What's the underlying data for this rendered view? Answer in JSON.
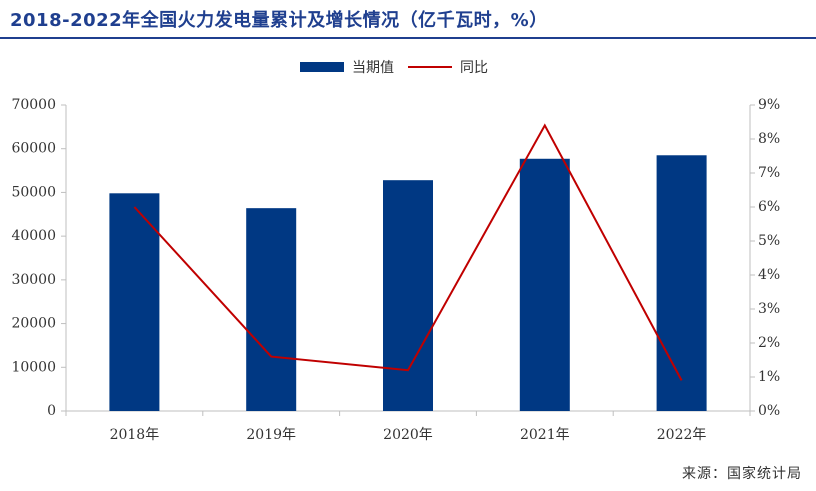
{
  "header": {
    "title": "2018-2022年全国火力发电量累计及增长情况（亿千瓦时，%）"
  },
  "legend": {
    "bar_label": "当期值",
    "line_label": "同比"
  },
  "source": "来源：国家统计局",
  "colors": {
    "bar": "#003883",
    "line": "#c00000",
    "title": "#1f3f8f",
    "axis": "#bfbfbf"
  },
  "chart_data": {
    "type": "bar",
    "categories": [
      "2018年",
      "2019年",
      "2020年",
      "2021年",
      "2022年"
    ],
    "series": [
      {
        "name": "当期值",
        "type": "bar",
        "axis": "left",
        "values": [
          49800,
          46400,
          52800,
          57700,
          58500
        ]
      },
      {
        "name": "同比",
        "type": "line",
        "axis": "right",
        "values": [
          6.0,
          1.6,
          1.2,
          8.4,
          0.9
        ]
      }
    ],
    "y_left": {
      "range": [
        0,
        70000
      ],
      "ticks": [
        "0",
        "10000",
        "20000",
        "30000",
        "40000",
        "50000",
        "60000",
        "70000"
      ]
    },
    "y_right": {
      "range": [
        0,
        9
      ],
      "ticks": [
        "0%",
        "1%",
        "2%",
        "3%",
        "4%",
        "5%",
        "6%",
        "7%",
        "8%",
        "9%"
      ]
    },
    "grid": false,
    "legend_position": "top-center"
  }
}
